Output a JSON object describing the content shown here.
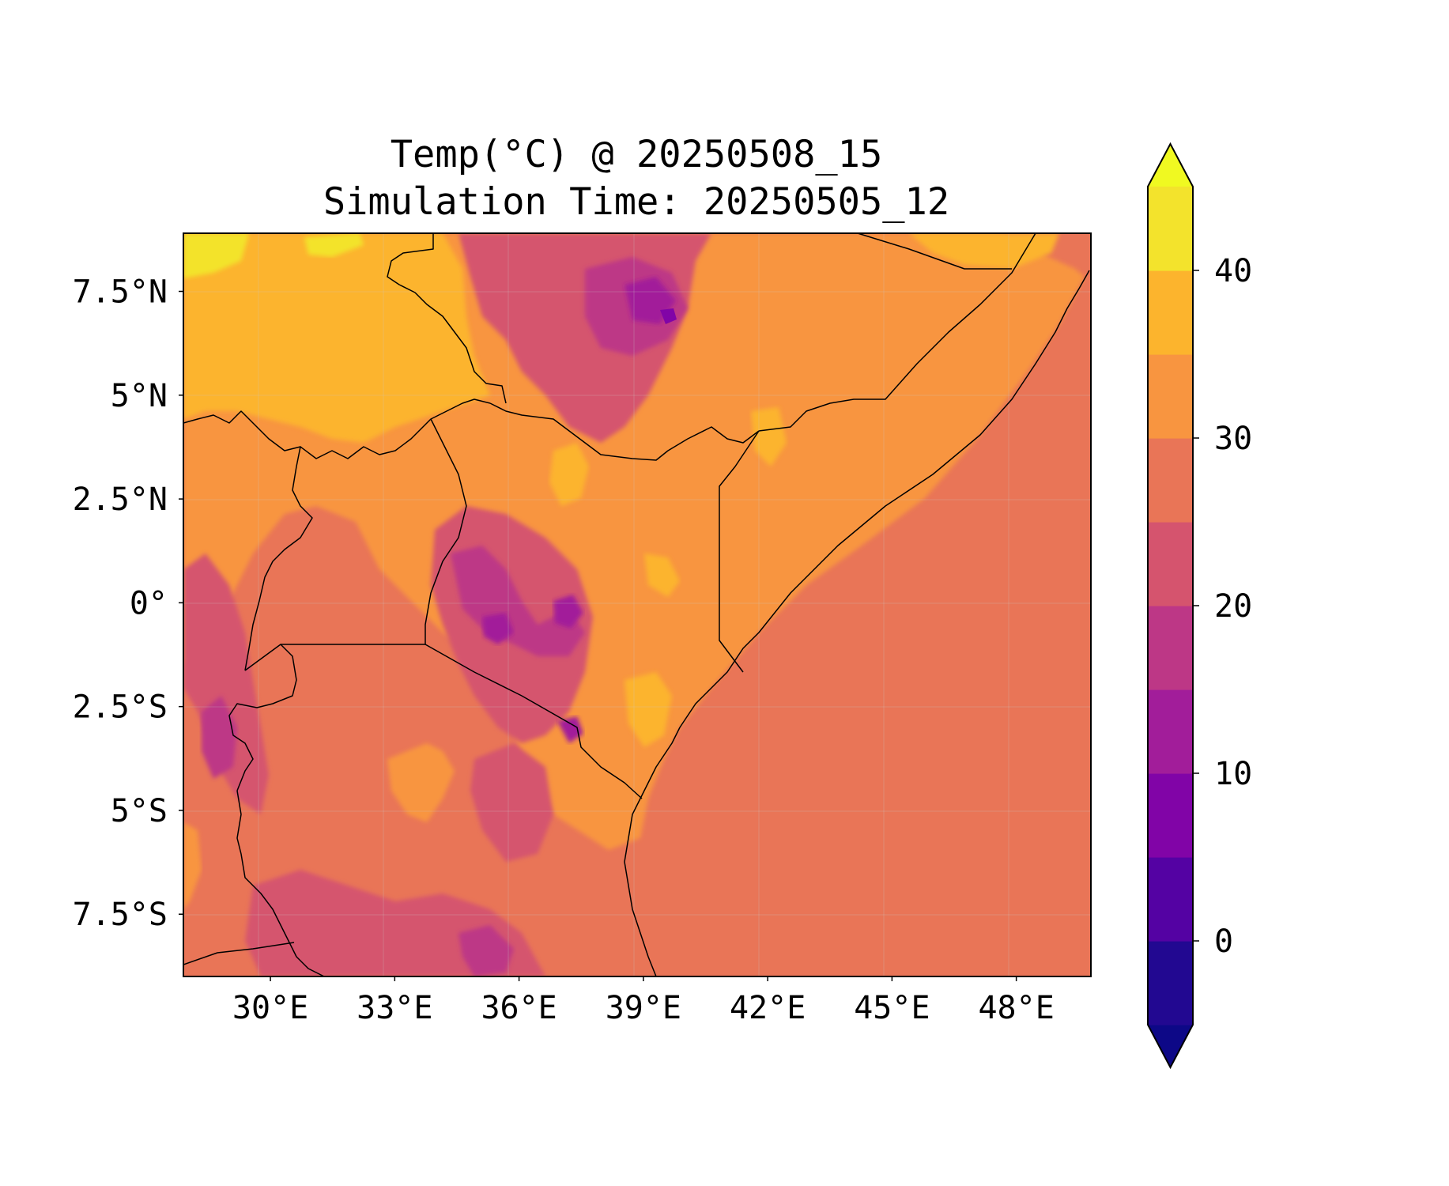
{
  "figure": {
    "title_line1": "Temp(°C) @ 20250508_15",
    "title_line2": "Simulation Time: 20250505_12"
  },
  "map": {
    "lon_range": [
      27.9,
      49.8
    ],
    "lat_range": [
      -9.0,
      8.9
    ],
    "lon_ticks": [
      {
        "value": 30,
        "label": "30°E"
      },
      {
        "value": 33,
        "label": "33°E"
      },
      {
        "value": 36,
        "label": "36°E"
      },
      {
        "value": 39,
        "label": "39°E"
      },
      {
        "value": 42,
        "label": "42°E"
      },
      {
        "value": 45,
        "label": "45°E"
      },
      {
        "value": 48,
        "label": "48°E"
      }
    ],
    "lat_ticks": [
      {
        "value": 7.5,
        "label": "7.5°N"
      },
      {
        "value": 5,
        "label": "5°N"
      },
      {
        "value": 2.5,
        "label": "2.5°N"
      },
      {
        "value": 0,
        "label": "0°"
      },
      {
        "value": -2.5,
        "label": "2.5°S"
      },
      {
        "value": -5,
        "label": "5°S"
      },
      {
        "value": -7.5,
        "label": "7.5°S"
      }
    ]
  },
  "colorbar": {
    "min": -5,
    "max": 45,
    "extend": "both",
    "ticks": [
      {
        "value": 0,
        "label": "0"
      },
      {
        "value": 10,
        "label": "10"
      },
      {
        "value": 20,
        "label": "20"
      },
      {
        "value": 30,
        "label": "30"
      },
      {
        "value": 40,
        "label": "40"
      }
    ],
    "levels": [
      {
        "from": -5,
        "to": 0,
        "color": "#220891"
      },
      {
        "from": 0,
        "to": 5,
        "color": "#5402a3"
      },
      {
        "from": 5,
        "to": 10,
        "color": "#8104a7"
      },
      {
        "from": 10,
        "to": 15,
        "color": "#a21d9a"
      },
      {
        "from": 15,
        "to": 20,
        "color": "#bd3786"
      },
      {
        "from": 20,
        "to": 25,
        "color": "#d5546e"
      },
      {
        "from": 25,
        "to": 30,
        "color": "#e97557"
      },
      {
        "from": 30,
        "to": 35,
        "color": "#f89540"
      },
      {
        "from": 35,
        "to": 40,
        "color": "#fcb42d"
      },
      {
        "from": 40,
        "to": 45,
        "color": "#f3e32c"
      }
    ],
    "under_color": "#0d0887",
    "over_color": "#f0f921"
  }
}
